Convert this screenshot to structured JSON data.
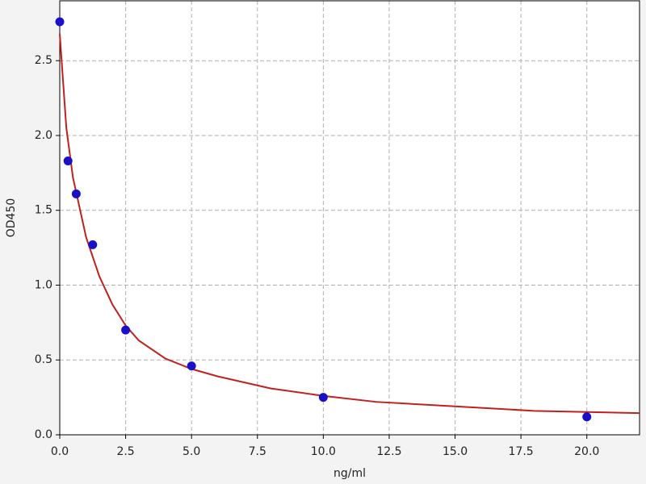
{
  "chart_data": {
    "type": "scatter",
    "x_label": "ng/ml",
    "y_label": "OD450",
    "series": [
      {
        "type": "line",
        "color": "#c0201e",
        "x": [
          0,
          0.25,
          0.5,
          1,
          1.5,
          2,
          2.5,
          3,
          4,
          5,
          6,
          8,
          10,
          12,
          15,
          18,
          22
        ],
        "values": [
          2.68,
          2.05,
          1.72,
          1.32,
          1.06,
          0.87,
          0.73,
          0.63,
          0.51,
          0.44,
          0.39,
          0.31,
          0.26,
          0.22,
          0.19,
          0.16,
          0.145
        ]
      },
      {
        "type": "scatter",
        "color": "#1a10c8",
        "x": [
          0,
          0.3125,
          0.625,
          1.25,
          2.5,
          5,
          10,
          20
        ],
        "values": [
          2.76,
          1.83,
          1.61,
          1.27,
          0.7,
          0.46,
          0.25,
          0.12
        ]
      }
    ],
    "xlim": [
      0,
      22
    ],
    "ylim": [
      0,
      2.9
    ],
    "xticks": [
      {
        "value": 0,
        "label": "0.0"
      },
      {
        "value": 2.5,
        "label": "2.5"
      },
      {
        "value": 5,
        "label": "5.0"
      },
      {
        "value": 7.5,
        "label": "7.5"
      },
      {
        "value": 10,
        "label": "10.0"
      },
      {
        "value": 12.5,
        "label": "12.5"
      },
      {
        "value": 15,
        "label": "15.0"
      },
      {
        "value": 17.5,
        "label": "17.5"
      },
      {
        "value": 20,
        "label": "20.0"
      }
    ],
    "yticks": [
      {
        "value": 0,
        "label": "0.0"
      },
      {
        "value": 0.5,
        "label": "0.5"
      },
      {
        "value": 1,
        "label": "1.0"
      },
      {
        "value": 1.5,
        "label": "1.5"
      },
      {
        "value": 2,
        "label": "2.0"
      },
      {
        "value": 2.5,
        "label": "2.5"
      }
    ],
    "grid": true
  }
}
